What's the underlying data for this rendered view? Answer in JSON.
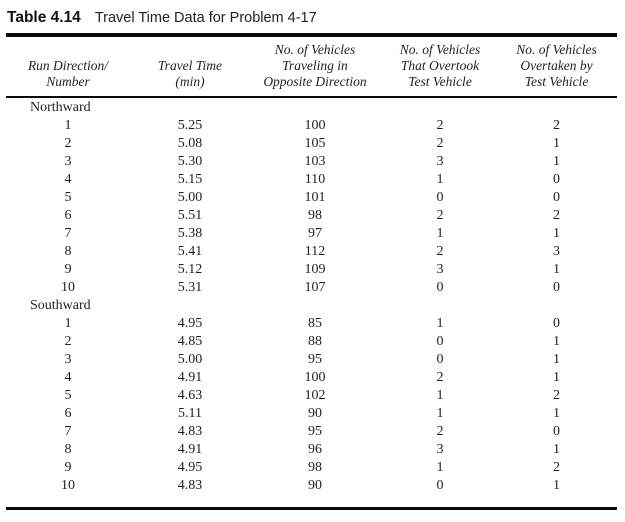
{
  "table": {
    "label": "Table 4.14",
    "title": "Travel Time Data for Problem 4-17",
    "columns": [
      {
        "lines": [
          "Run Direction/",
          "Number"
        ]
      },
      {
        "lines": [
          "Travel Time",
          "(min)"
        ]
      },
      {
        "lines": [
          "No. of Vehicles",
          "Traveling in",
          "Opposite Direction"
        ]
      },
      {
        "lines": [
          "No. of Vehicles",
          "That Overtook",
          "Test Vehicle"
        ]
      },
      {
        "lines": [
          "No. of Vehicles",
          "Overtaken by",
          "Test Vehicle"
        ]
      }
    ],
    "sections": [
      {
        "label": "Northward",
        "rows": [
          [
            "1",
            "5.25",
            "100",
            "2",
            "2"
          ],
          [
            "2",
            "5.08",
            "105",
            "2",
            "1"
          ],
          [
            "3",
            "5.30",
            "103",
            "3",
            "1"
          ],
          [
            "4",
            "5.15",
            "110",
            "1",
            "0"
          ],
          [
            "5",
            "5.00",
            "101",
            "0",
            "0"
          ],
          [
            "6",
            "5.51",
            "98",
            "2",
            "2"
          ],
          [
            "7",
            "5.38",
            "97",
            "1",
            "1"
          ],
          [
            "8",
            "5.41",
            "112",
            "2",
            "3"
          ],
          [
            "9",
            "5.12",
            "109",
            "3",
            "1"
          ],
          [
            "10",
            "5.31",
            "107",
            "0",
            "0"
          ]
        ]
      },
      {
        "label": "Southward",
        "rows": [
          [
            "1",
            "4.95",
            "85",
            "1",
            "0"
          ],
          [
            "2",
            "4.85",
            "88",
            "0",
            "1"
          ],
          [
            "3",
            "5.00",
            "95",
            "0",
            "1"
          ],
          [
            "4",
            "4.91",
            "100",
            "2",
            "1"
          ],
          [
            "5",
            "4.63",
            "102",
            "1",
            "2"
          ],
          [
            "6",
            "5.11",
            "90",
            "1",
            "1"
          ],
          [
            "7",
            "4.83",
            "95",
            "2",
            "0"
          ],
          [
            "8",
            "4.91",
            "96",
            "3",
            "1"
          ],
          [
            "9",
            "4.95",
            "98",
            "1",
            "2"
          ],
          [
            "10",
            "4.83",
            "90",
            "0",
            "1"
          ]
        ]
      }
    ],
    "colors": {
      "text": "#1f1f23",
      "rule": "#0b0b0e",
      "background": "#ffffff"
    }
  }
}
